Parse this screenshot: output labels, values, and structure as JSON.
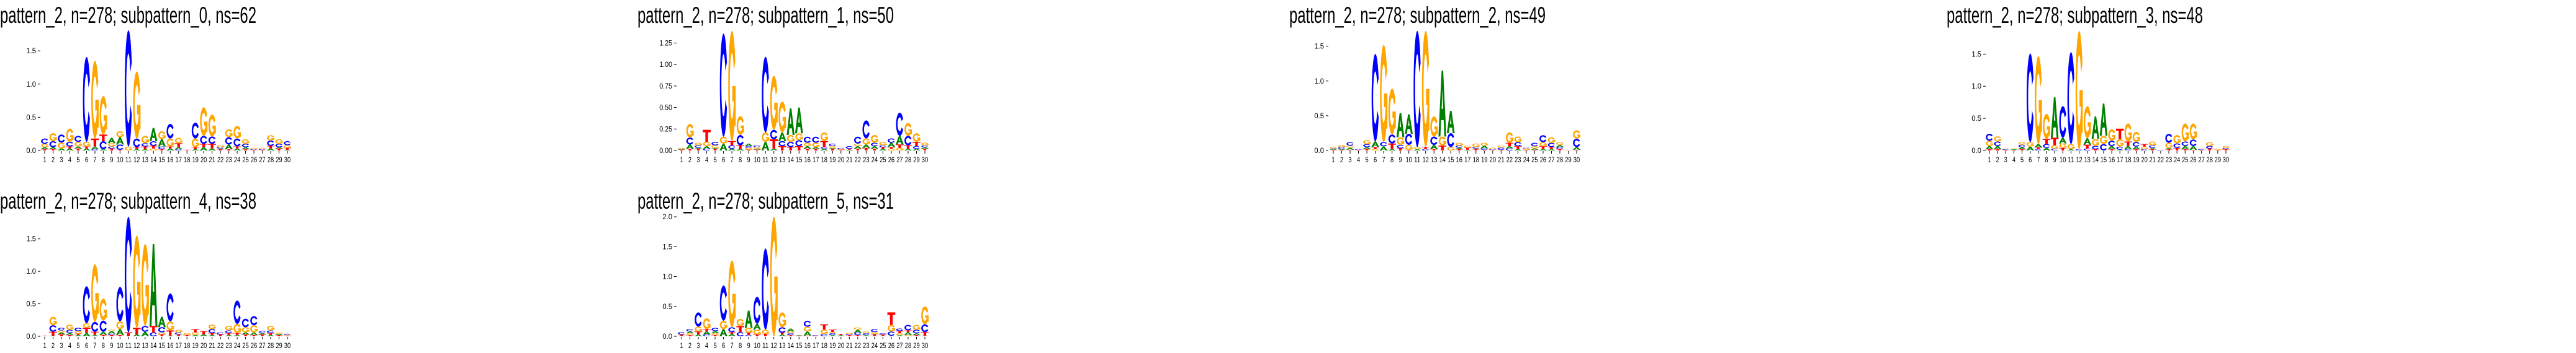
{
  "legend_colors": {
    "A": "#008000",
    "C": "#0000ff",
    "G": "#ffa500",
    "T": "#ff0000"
  },
  "chart_data": [
    {
      "type": "sequence-logo",
      "title": "pattern_2, n=278; subpattern_0, ns=62",
      "ylim": [
        0,
        1.8
      ],
      "yticks": [
        0,
        0.5,
        1.0,
        1.5
      ],
      "ytick_labels": [
        "0.0",
        "0.5",
        "1.0",
        "1.5"
      ],
      "xtick_labels": [
        "1",
        "2",
        "3",
        "4",
        "5",
        "6",
        "7",
        "8",
        "9",
        "10",
        "11",
        "12",
        "13",
        "14",
        "15",
        "16",
        "17",
        "18",
        "19",
        "20",
        "21",
        "22",
        "23",
        "24",
        "25",
        "26",
        "27",
        "28",
        "29",
        "30"
      ],
      "positions": [
        "T.02,A.03,G.05,C.08",
        "T.02,A.03,C.09,G.12",
        "A.03,G.09,C.12",
        "A.03,T.03,C.07,G.2",
        "T.03,A.03,G.07,C.09",
        "A.03,T.03,G.07,C1.28",
        "C.02,A.04,T.12,G1.17",
        "A.02,C.12,T.1,G.58",
        "T.03,C.03,G.05,A.08",
        "T.01,C.08,A.11,G.09",
        "G.06,C1.75",
        "A.02,T.03,C.13,G1.01",
        "A.02,T.04,C.05,G.11",
        "G.03,T.04,C.07,A.2",
        "T.02,C.04,A.11,G.12",
        "A.03,T.03,G.12,C.22",
        "C.02,A.03,T.06,G.08",
        "T.01",
        "A.02,T.03,G.13,C.24",
        "A.05,T.05,C.12,G.43",
        "A.03,T.07,C.11,G.33",
        "T.02,A.01,C.02,G.03",
        "T.02,A.07,C.11,G.12",
        "A.03,T.03,C.12,G.19",
        "T.02,A.03,C.05,G.07",
        "T.01,C.01,G.02",
        "T.01,C.01,G.02",
        "A.03,T.04,C.08,G.08",
        "T.03,A.02,C.05,G.07",
        "A.01,T.03,G.04,C.06"
      ]
    },
    {
      "type": "sequence-logo",
      "title": "pattern_2, n=278; subpattern_1, ns=50",
      "ylim": [
        0,
        1.39
      ],
      "yticks": [
        0,
        0.25,
        0.5,
        0.75,
        1.0,
        1.25
      ],
      "ytick_labels": [
        "0.00",
        "0.25",
        "0.50",
        "0.75",
        "1.00",
        "1.25"
      ],
      "xtick_labels": [
        "1",
        "2",
        "3",
        "4",
        "5",
        "6",
        "7",
        "8",
        "9",
        "10",
        "11",
        "12",
        "13",
        "14",
        "15",
        "16",
        "17",
        "18",
        "19",
        "20",
        "21",
        "22",
        "23",
        "24",
        "25",
        "26",
        "27",
        "28",
        "29",
        "30"
      ],
      "positions": [
        "T.01,A.01,G.01",
        "T.02,A.05,C.08,G.16",
        "T.02,A.01,C.03,G.03",
        "C.02,A.03,G.05,T.14",
        "T.02,A.01,G.03,C.04",
        "A.08,G.08,C1.2",
        "A.02,C.04,T.05,G1.28",
        "A.02,T.04,C.12,G.22",
        "T.01,G.02,C.02,A.03",
        "T.01,A.01,G.02,C.02",
        "A.1,G.11,C.88",
        "A.02,T.11,C.11,G.63",
        "T.05,C.06,A.1,G.36",
        "T.04,C.06,G.08,A.31",
        "T.05,C.07,G.08,A.3",
        "T.02,A.03,G.04,C.07",
        "T.02,A.02,G.05,C.07",
        "A.02,C.02,T.07,G.1",
        "T.02,A.01,G.02,C.03",
        "T.01,G.01,C.01",
        "A.01,T.01,C.03",
        "T.02,A.03,G.03,C.08",
        "T.03,A.04,G.07,C.21",
        "T.02,A.03,C.04,G.09",
        "A.02,T.02,C.02,G.04",
        "G.02,T.02,A.05,C.05",
        "G.03,T.04,A.1,C.27",
        "A.02,T.04,C.11,G.15",
        "A.02,C.03,T.05,G.1",
        "T.02,A.02,C.02,G.03"
      ]
    },
    {
      "type": "sequence-logo",
      "title": "pattern_2, n=278; subpattern_2, ns=49",
      "ylim": [
        0,
        1.72
      ],
      "yticks": [
        0,
        0.5,
        1.0,
        1.5
      ],
      "ytick_labels": [
        "0.0",
        "0.5",
        "1.0",
        "1.5"
      ],
      "xtick_labels": [
        "1",
        "2",
        "3",
        "4",
        "5",
        "6",
        "7",
        "8",
        "9",
        "10",
        "11",
        "12",
        "13",
        "14",
        "15",
        "16",
        "17",
        "18",
        "19",
        "20",
        "21",
        "22",
        "23",
        "24",
        "25",
        "26",
        "27",
        "28",
        "29",
        "30"
      ],
      "positions": [
        "T.01,A.01,C.01,G.02",
        "T.01,A.01,C.03,G.03",
        "T.01,A.03,G.03,C.05",
        "T.01,C.01",
        "T.02,A.03,C.04,G.06",
        "G.02,T.03,A.08,C1.26",
        "A.06,C.06,G1.4",
        "A.02,T.08,C.13,G.66",
        "T.03,C.05,G.11,A.35",
        "T.01,G.07,C.16,A.28",
        "A.02,G.03,C1.67",
        "C.02,T.03,G1.67",
        "T.02,A.06,C.12,G.29",
        "T.07,G.13,A.95",
        "G.05,C.2,A.32",
        "T.02,A.02,C.03,G.04",
        "A.01,T.03,G.03",
        "T.02,A.01,C.02,G.05",
        "T.01,C.02,A.04,G.04",
        "T.01,C.01,G.02",
        "T.01,C.03,G.03",
        "C.03,A.03,T.05,G.15",
        "A.02,T.04,C.06,G.08",
        "T.01,G.02,C.01",
        "T.01,A.02,G.03,C.05",
        "A.02,T.04,G.06,C.1",
        "A.02,T.03,C.06,G.08",
        "T.02,C.03,A.03,G.04",
        "T.003",
        "T.01,A.04,C.12,G.12"
      ]
    },
    {
      "type": "sequence-logo",
      "title": "pattern_2, n=278; subpattern_3, ns=48",
      "ylim": [
        0,
        1.86
      ],
      "yticks": [
        0,
        0.5,
        1.0,
        1.5
      ],
      "ytick_labels": [
        "0.0",
        "0.5",
        "1.0",
        "1.5"
      ],
      "xtick_labels": [
        "1",
        "2",
        "3",
        "4",
        "5",
        "6",
        "7",
        "8",
        "9",
        "10",
        "11",
        "12",
        "13",
        "14",
        "15",
        "16",
        "17",
        "18",
        "19",
        "20",
        "21",
        "22",
        "23",
        "24",
        "25",
        "26",
        "27",
        "28",
        "29",
        "30"
      ],
      "positions": [
        "T.02,A.05,G.08,C.11",
        "T.02,A.05,C.07,G.08",
        "T.01,C.01,G.01",
        "T.01,A.01,G.01",
        "T.02,A.03,C.04,G.04",
        "A.06,G.07,C1.38",
        "C.02,T.03,A.05,G1.37",
        "A.04,C.06,T.08,G.39",
        "C.03,G.05,T.12,A.63",
        "T.04,G.07,A.09,C.49",
        "A.02,G.08,C1.43",
        "C.02,G1.84",
        "C.03,T.06,A.1,G.5",
        "T.02,C.05,G.11,A.35",
        "C.1,G.13,A.5",
        "T.02,A.05,C.08,G.18",
        "A.01,C.05,G.12,T.16",
        "C.02,A.05,T.07,G.28",
        "T.02,A.04,C.07,G.16",
        "C.02,G.04,T.04",
        "T.02,A.02,C.04,G.06",
        "C.01",
        "T.02,A.02,G.08,C.14",
        "T.04,C.07,G.13",
        "T.02,A.05,C.07,G.28",
        "T.01,A.06,C.1,G.25",
        "T.01,C.01,G.01",
        "T.03,C.04,G.06",
        "T.01,G.02",
        "T.02,C.02,G.03"
      ]
    },
    {
      "type": "sequence-logo",
      "title": "pattern_2, n=278; subpattern_4, ns=38",
      "ylim": [
        0,
        1.84
      ],
      "yticks": [
        0,
        0.5,
        1.0,
        1.5
      ],
      "ytick_labels": [
        "0.0",
        "0.5",
        "1.0",
        "1.5"
      ],
      "xtick_labels": [
        "1",
        "2",
        "3",
        "4",
        "5",
        "6",
        "7",
        "8",
        "9",
        "10",
        "11",
        "12",
        "13",
        "14",
        "15",
        "16",
        "17",
        "18",
        "19",
        "20",
        "21",
        "22",
        "23",
        "24",
        "25",
        "26",
        "27",
        "28",
        "29",
        "30"
      ],
      "positions": [
        "T.01",
        "A.01,T.06,C.1,G.13",
        "T.03,A.03,G.03,C.04",
        "T.02,A.03,C.05,G.08",
        "A.02,T.02,G.04,C.05",
        "A.05,T.08,G.07,C.57",
        "A.02,T.05,C.15,G.89",
        "T.02,A.05,C.17,G.34",
        "T.02,C.02,A.04,G.02",
        "T.02,A.09,G.12,C.53",
        "T.06,C1.78",
        "A.03,T.1,G1.42",
        "A.07,C.09,G1.26",
        "C.06,T.1,A1.26",
        "T.03,G.03,C.08,A.16",
        "A.01,T.08,G.14,C.43",
        "A.01,T.02,C.03,G.04",
        "T.02,G.03",
        "A.02,G.04,T.05",
        "A.03,T.05",
        "A.02,T.03,C.06,G.07",
        "T.03,C.03",
        "A.02,T.03,C.04,G.07",
        "A.02,T.03,G.14,C.36",
        "T.03,A.03,G.08,C.13",
        "T.02,A.04,G.11,C.14",
        "T.03,A.02,C.03",
        "A.02,T.03,C.04,G.07",
        "T.02,A.02,G.02",
        "T.01,G.01,C.02"
      ]
    },
    {
      "type": "sequence-logo",
      "title": "pattern_2, n=278; subpattern_5, ns=31",
      "ylim": [
        0,
        2.0
      ],
      "yticks": [
        0,
        0.5,
        1.0,
        1.5,
        2.0
      ],
      "ytick_labels": [
        "0.0",
        "0.5",
        "1.0",
        "1.5",
        "2.0"
      ],
      "xtick_labels": [
        "1",
        "2",
        "3",
        "4",
        "5",
        "6",
        "7",
        "8",
        "9",
        "10",
        "11",
        "12",
        "13",
        "14",
        "15",
        "16",
        "17",
        "18",
        "19",
        "20",
        "21",
        "22",
        "23",
        "24",
        "25",
        "26",
        "27",
        "28",
        "29",
        "30"
      ],
      "positions": [
        "A.01,T.02,C.04",
        "T.02,G.03,A.03,C.04",
        "A.03,T.05,G.08,C.24",
        "C.03,A.05,T.04,G.18",
        "T.02,G.03,A.04,C.05",
        "A.12,G.14,C.59",
        "A.04,T.03,C.08,G1.12",
        "C.07,T.1,G.12",
        "C.02,T.04,G.08,A.29",
        "T.03,G.08,A.1,C.45",
        "T.04,G.07,C1.36",
        "G2.0",
        "A.03,T.03,C.09,G.25",
        "T.02,C.03,G.03,A.05",
        "T.01,A.01",
        "T.01,A.07,G.08,C.1",
        "T.01,C.01",
        "C.04,G.07,T.09",
        "A.02,C.03,G.02,T.04",
        "A.02,T.02",
        "T.02,C.02,G.02",
        "T.02,C.04,A.05,G.04",
        "A.02,C.03,G.03",
        "A.01,T.03,G.03,C.05",
        "A.01,T.02,C.02",
        "A.01,C.07,G.11,T.21",
        "A.02,G.03,T.04,C.04",
        "G.02,A.05,T.03,C.09",
        "T.02,A.03,C.06,G.08",
        "A.01,T.06,C.13,G.3"
      ]
    }
  ]
}
